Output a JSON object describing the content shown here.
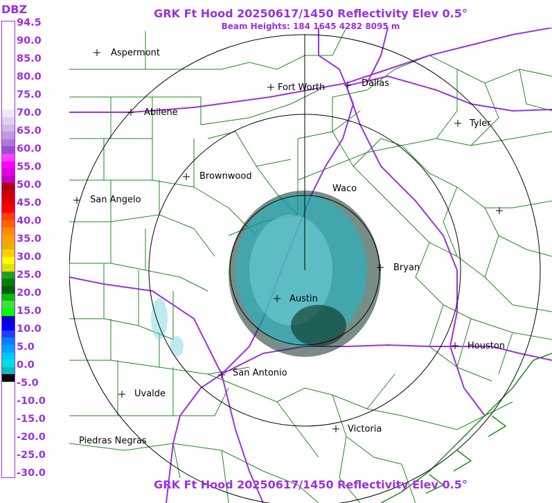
{
  "header": {
    "title": "GRK Ft Hood 20250617/1450 Reflectivity Elev 0.5°",
    "subtitle": "Beam Heights: 184 1645 4282 8095 m",
    "footer_title": "GRK Ft Hood 20250617/1450 Reflectivity Elev 0.5°"
  },
  "legend": {
    "unit": "DBZ",
    "labels": [
      "94.5",
      "90.0",
      "85.0",
      "80.0",
      "75.0",
      "70.0",
      "65.0",
      "60.0",
      "55.0",
      "50.0",
      "45.0",
      "40.0",
      "35.0",
      "30.0",
      "25.0",
      "20.0",
      "15.0",
      "10.0",
      "5.0",
      "0.0",
      "-5.0",
      "-10.0",
      "-15.0",
      "-20.0",
      "-25.0",
      "-30.0"
    ],
    "colors": [
      "#ffffff",
      "#ffffff",
      "#ffffff",
      "#ffffff",
      "#ffffff",
      "#ffffff",
      "#ffffff",
      "#ffffff",
      "#ffffff",
      "#ffffff",
      "#ffffff",
      "#ffffff",
      "#f0e8f8",
      "#e0d0f0",
      "#d0b8e8",
      "#c098e0",
      "#b078d8",
      "#9850d0",
      "#ff40ff",
      "#ff00ff",
      "#e000e0",
      "#c000c0",
      "#b00010",
      "#d00000",
      "#e00000",
      "#ff0000",
      "#ff4000",
      "#ff6000",
      "#ff8c00",
      "#ffa000",
      "#e8b000",
      "#ffd000",
      "#ffff00",
      "#e0e000",
      "#20a020",
      "#008000",
      "#006000",
      "#00c000",
      "#40e040",
      "#00ff00",
      "#0000c0",
      "#0000ff",
      "#2040ff",
      "#0080ff",
      "#00a0ff",
      "#00c8ff",
      "#00e0e0",
      "#00c0c0",
      "#000000",
      "#ffffff",
      "#ffffff",
      "#ffffff",
      "#ffffff",
      "#ffffff",
      "#ffffff",
      "#ffffff",
      "#ffffff",
      "#ffffff",
      "#ffffff",
      "#ffffff",
      "#ffffff",
      "#ffffff"
    ]
  },
  "map": {
    "cities": {
      "aspermont": "Aspermont",
      "abilene": "Abilene",
      "fort_worth": "Fort Worth",
      "dallas": "Dallas",
      "tyler": "Tyler",
      "brownwood": "Brownwood",
      "san_angelo": "San Angelo",
      "waco": "Waco",
      "bryan": "Bryan",
      "austin": "Austin",
      "houston": "Houston",
      "san_antonio": "San Antonio",
      "uvalde": "Uvalde",
      "piedras_negras": "Piedras Negras",
      "victoria": "Victoria"
    },
    "colors": {
      "county_lines": "#1a8a1a",
      "highways": "#9b30e0",
      "range_rings": "#000000",
      "echo_core": "#1fb8c8",
      "echo_light": "#7fd8e0",
      "echo_speckle": "#0a3020"
    }
  }
}
